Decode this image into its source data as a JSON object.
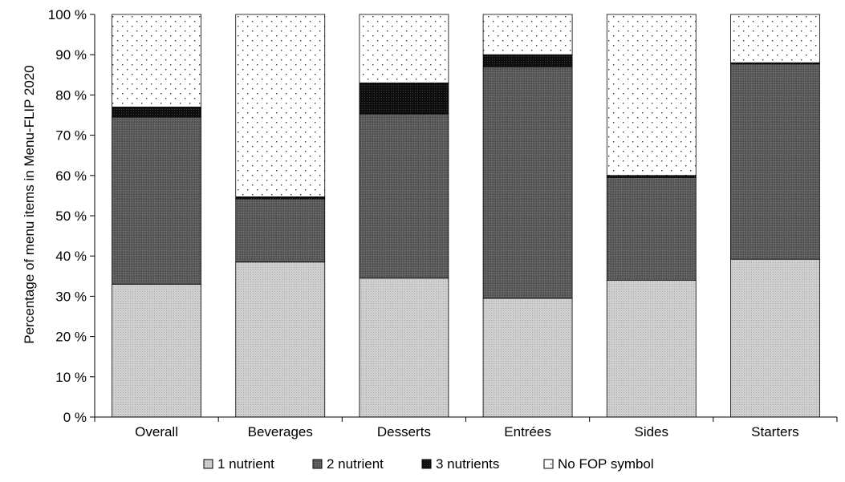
{
  "chart_data": {
    "type": "bar",
    "stacked": true,
    "percent_stacked": true,
    "title": "",
    "xlabel": "",
    "ylabel": "Percentage of menu items in Menu-FLIP 2020",
    "ylim": [
      0,
      100
    ],
    "yticks": [
      {
        "value": 0,
        "label": "0 %"
      },
      {
        "value": 10,
        "label": "10 %"
      },
      {
        "value": 20,
        "label": "20 %"
      },
      {
        "value": 30,
        "label": "30 %"
      },
      {
        "value": 40,
        "label": "40 %"
      },
      {
        "value": 50,
        "label": "50 %"
      },
      {
        "value": 60,
        "label": "60 %"
      },
      {
        "value": 70,
        "label": "70 %"
      },
      {
        "value": 80,
        "label": "80 %"
      },
      {
        "value": 90,
        "label": "90 %"
      },
      {
        "value": 100,
        "label": "100 %"
      }
    ],
    "categories": [
      "Overall",
      "Beverages",
      "Desserts",
      "Entrées",
      "Sides",
      "Starters"
    ],
    "series": [
      {
        "name": "1 nutrient",
        "values": [
          33,
          38.5,
          34.5,
          29.5,
          34,
          39.2
        ],
        "color": "#c8c8c8",
        "pattern": "fine-dots"
      },
      {
        "name": "2 nutrient",
        "values": [
          41.5,
          15.7,
          40.8,
          57.5,
          25.5,
          48.5
        ],
        "color": "#5e5e5e",
        "pattern": "crosshatch"
      },
      {
        "name": "3 nutrients",
        "values": [
          2.5,
          0.5,
          7.7,
          3,
          0.5,
          0.3
        ],
        "color": "#111111",
        "pattern": "dense"
      },
      {
        "name": "No FOP symbol",
        "values": [
          23,
          45.3,
          17,
          10,
          40,
          12
        ],
        "color": "#ffffff",
        "pattern": "sparse-dots"
      }
    ],
    "legend_position": "bottom",
    "grid": false
  }
}
